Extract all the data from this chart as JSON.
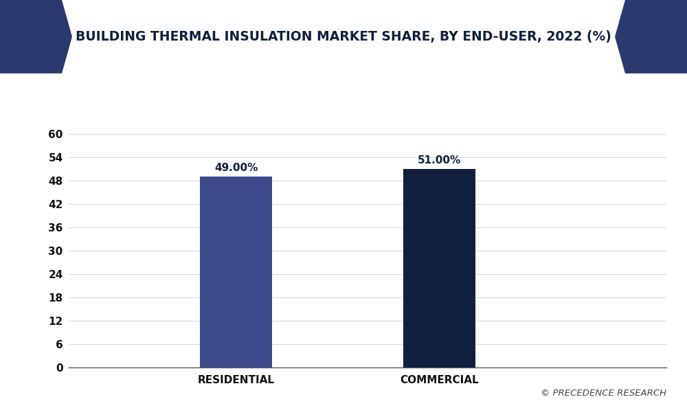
{
  "categories": [
    "RESIDENTIAL",
    "COMMERCIAL"
  ],
  "values": [
    49.0,
    51.0
  ],
  "bar_colors": [
    "#3d4b8a",
    "#0f1f3d"
  ],
  "bar_labels": [
    "49.00%",
    "51.00%"
  ],
  "title": "BUILDING THERMAL INSULATION MARKET SHARE, BY END-USER, 2022 (%)",
  "yticks": [
    0,
    6,
    12,
    18,
    24,
    30,
    36,
    42,
    48,
    54,
    60
  ],
  "ylim": [
    0,
    65
  ],
  "background_color": "#ffffff",
  "plot_bg_color": "#ffffff",
  "grid_color": "#cccccc",
  "title_color": "#0f1f3d",
  "tick_label_color": "#111111",
  "bar_label_color": "#0f1f3d",
  "copyright_text": "© PRECEDENCE RESEARCH",
  "title_fontsize": 13.5,
  "bar_width": 0.12,
  "x_positions": [
    0.28,
    0.62
  ],
  "xlim": [
    0.0,
    1.0
  ],
  "header_bg_color": "#f0f2f5",
  "chevron_color": "#2a3a6e",
  "header_border_color": "#1a2a5e"
}
